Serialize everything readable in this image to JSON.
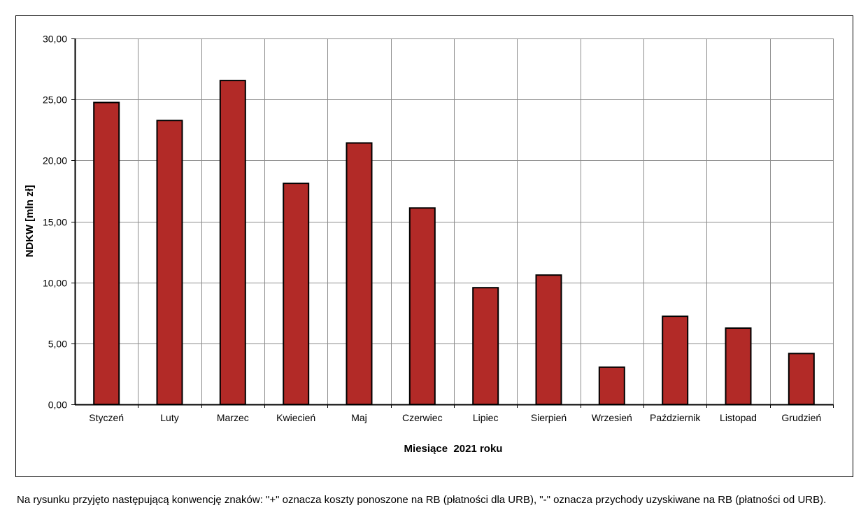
{
  "chart_data": {
    "type": "bar",
    "title": "",
    "xlabel": "Miesiące  2021 roku",
    "ylabel": "NDKW [mln zł]",
    "categories": [
      "Styczeń",
      "Luty",
      "Marzec",
      "Kwiecień",
      "Maj",
      "Czerwiec",
      "Lipiec",
      "Sierpień",
      "Wrzesień",
      "Październik",
      "Listopad",
      "Grudzień"
    ],
    "values": [
      24.75,
      23.28,
      26.55,
      18.12,
      21.43,
      16.1,
      9.57,
      10.6,
      3.05,
      7.22,
      6.25,
      4.17
    ],
    "ylim": [
      0,
      30
    ],
    "yticks": [
      0,
      5,
      10,
      15,
      20,
      25,
      30
    ],
    "ytick_labels": [
      "0,00",
      "5,00",
      "10,00",
      "15,00",
      "20,00",
      "25,00",
      "30,00"
    ],
    "grid": true,
    "legend": "none",
    "bar_color": "#B22A27"
  },
  "caption": "Na rysunku przyjęto następującą konwencję znaków: \"+\" oznacza koszty ponoszone na RB (płatności dla URB), \"-\" oznacza przychody uzyskiwane na RB (płatności od URB)."
}
